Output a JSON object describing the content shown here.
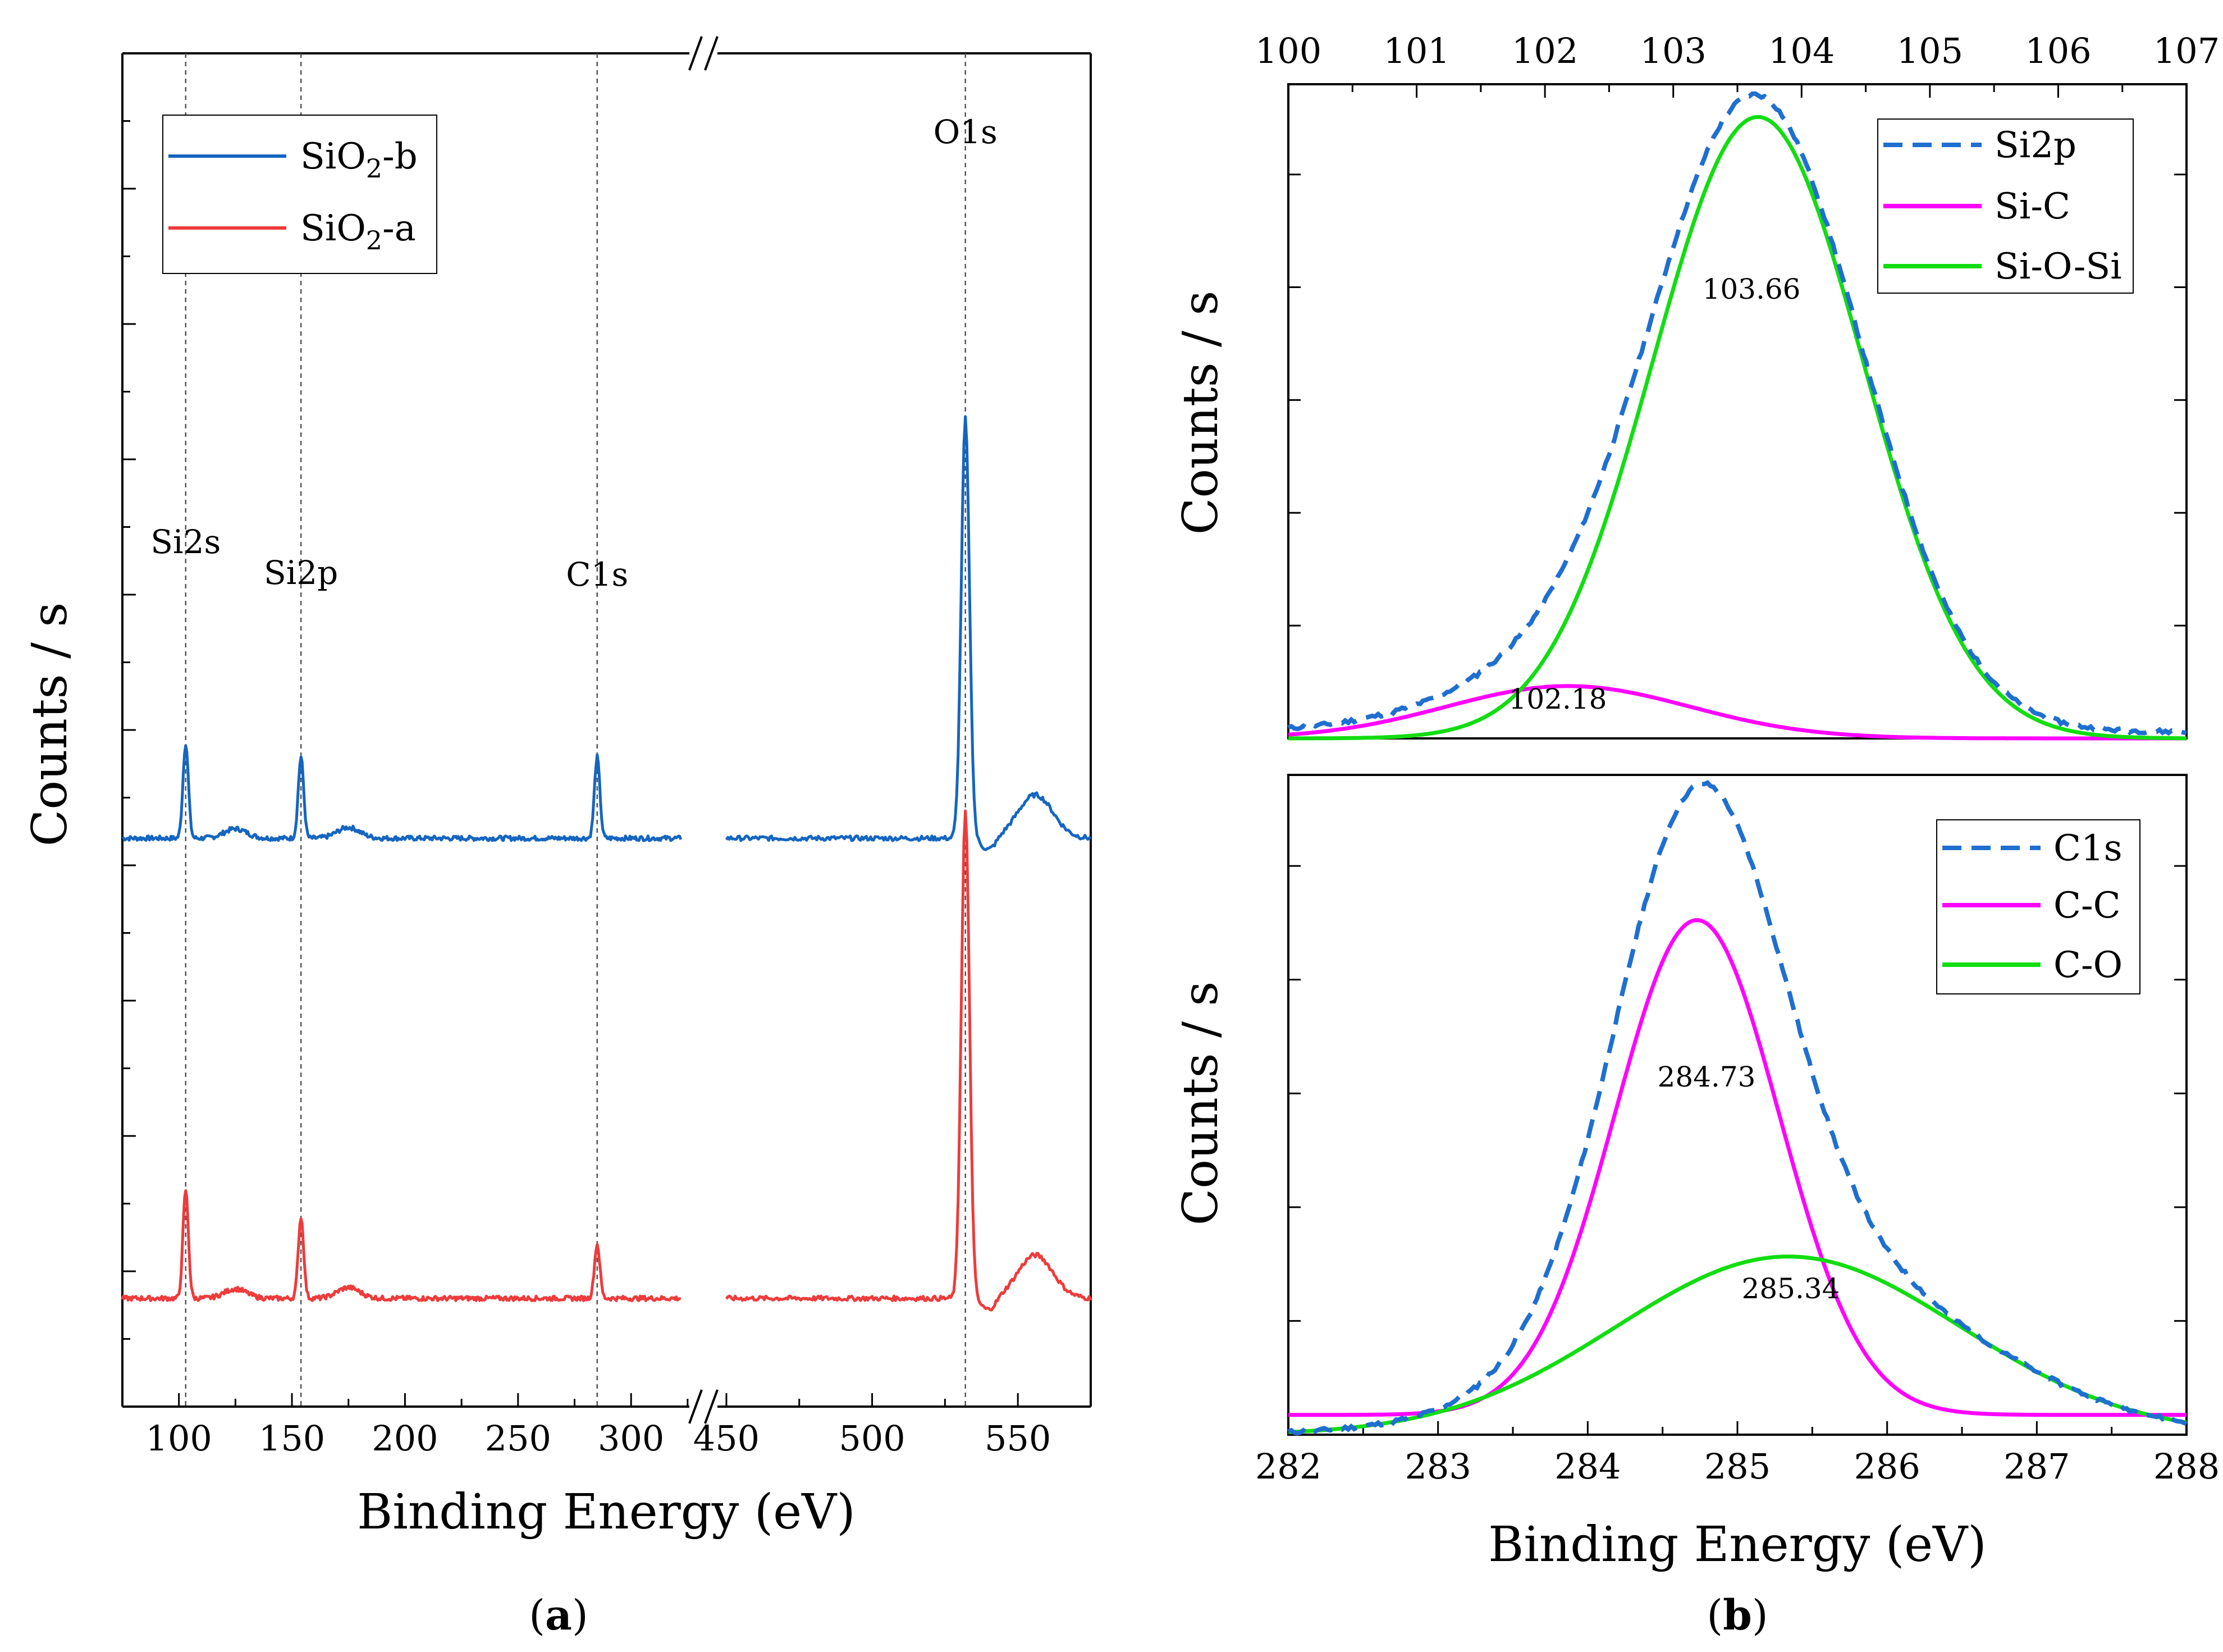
{
  "figure": {
    "panel_a_label": "a",
    "panel_b_label": "b",
    "axis_break_mark": "//"
  },
  "chart_data": [
    {
      "id": "survey",
      "type": "line",
      "title": "",
      "xlabel": "Binding Energy (eV)",
      "ylabel": "Counts / s",
      "x_break": {
        "left_range": [
          75,
          330
        ],
        "right_range": [
          445,
          575
        ]
      },
      "xticks_left": [
        "100",
        "150",
        "200",
        "250",
        "300"
      ],
      "xticks_right": [
        "450",
        "500",
        "550"
      ],
      "ylim": [
        0,
        100
      ],
      "legend": {
        "position": "top-left",
        "entries": [
          {
            "prefix": "SiO",
            "sub": "2",
            "suffix": "-b",
            "color": "#1565c0"
          },
          {
            "prefix": "SiO",
            "sub": "2",
            "suffix": "-a",
            "color": "#ee3b3b"
          }
        ]
      },
      "peak_markers": [
        {
          "label": "Si2s",
          "x": 103
        },
        {
          "label": "Si2p",
          "x": 154
        },
        {
          "label": "C1s",
          "x": 285
        },
        {
          "label": "O1s",
          "x": 532
        }
      ],
      "series": [
        {
          "name": "SiO2-b",
          "color": "#1565c0",
          "baseline": 42,
          "peaks": [
            {
              "x": 103,
              "h": 7
            },
            {
              "x": 154,
              "h": 6
            },
            {
              "x": 285,
              "h": 6
            },
            {
              "x": 532,
              "h": 31
            }
          ],
          "bumps": [
            {
              "x": 125,
              "h": 0.7
            },
            {
              "x": 175,
              "h": 0.8
            },
            {
              "x": 556,
              "h": 3.2
            }
          ]
        },
        {
          "name": "SiO2-a",
          "color": "#ee3b3b",
          "baseline": 8,
          "peaks": [
            {
              "x": 103,
              "h": 8
            },
            {
              "x": 154,
              "h": 6
            },
            {
              "x": 285,
              "h": 4
            },
            {
              "x": 532,
              "h": 36
            }
          ],
          "bumps": [
            {
              "x": 125,
              "h": 0.7
            },
            {
              "x": 175,
              "h": 0.8
            },
            {
              "x": 556,
              "h": 3.2
            }
          ]
        }
      ]
    },
    {
      "id": "si2p",
      "type": "line",
      "title": "",
      "xlabel": "",
      "ylabel": "Counts / s",
      "xlim": [
        100,
        107
      ],
      "xticks": [
        "100",
        "101",
        "102",
        "103",
        "104",
        "105",
        "106",
        "107"
      ],
      "ylim": [
        0,
        100
      ],
      "legend": {
        "position": "top-right",
        "entries": [
          {
            "label": "Si2p",
            "color": "#1f6fd0",
            "dash": true
          },
          {
            "label": "Si-C",
            "color": "#ff00ff",
            "dash": false
          },
          {
            "label": "Si-O-Si",
            "color": "#11dd11",
            "dash": false
          }
        ]
      },
      "components": [
        {
          "name": "Si-C",
          "center": 102.18,
          "amplitude": 8,
          "sigma": 0.95,
          "label": "102.18",
          "color": "#ff00ff"
        },
        {
          "name": "Si-O-Si",
          "center": 103.66,
          "amplitude": 95,
          "sigma": 0.82,
          "label": "103.66",
          "color": "#11dd11"
        }
      ],
      "envelope": {
        "name": "Si2p",
        "color": "#1f6fd0",
        "dash": true,
        "baseline": 1
      }
    },
    {
      "id": "c1s",
      "type": "line",
      "title": "",
      "xlabel": "Binding Energy (eV)",
      "ylabel": "Counts / s",
      "xlim": [
        282,
        288
      ],
      "xticks": [
        "282",
        "283",
        "284",
        "285",
        "286",
        "287",
        "288"
      ],
      "ylim": [
        0,
        100
      ],
      "legend": {
        "position": "top-right",
        "entries": [
          {
            "label": "C1s",
            "color": "#1f6fd0",
            "dash": true
          },
          {
            "label": "C-C",
            "color": "#ff00ff",
            "dash": false
          },
          {
            "label": "C-O",
            "color": "#11dd11",
            "dash": false
          }
        ]
      },
      "components": [
        {
          "name": "C-C",
          "center": 284.73,
          "amplitude": 75,
          "sigma": 0.55,
          "label": "284.73",
          "color": "#ff00ff",
          "floor": 3
        },
        {
          "name": "C-O",
          "center": 285.34,
          "amplitude": 27,
          "sigma": 1.15,
          "label": "285.34",
          "color": "#11dd11",
          "floor": 0
        }
      ],
      "envelope": {
        "name": "C1s",
        "color": "#1f6fd0",
        "dash": true,
        "baseline": 0
      }
    }
  ]
}
